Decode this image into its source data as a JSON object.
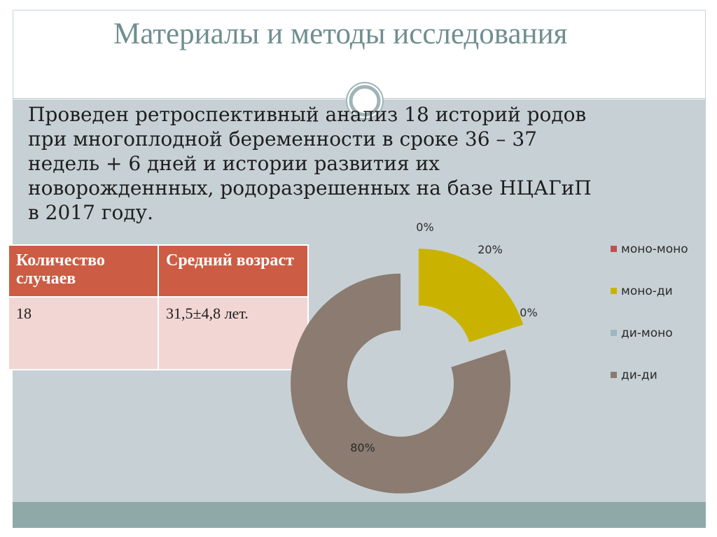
{
  "slide": {
    "title": "Материалы и методы исследования",
    "body_lines": [
      "Проведен ретроспективный анализ 18 историй родов",
      "при многоплодной беременности в сроке 36 – 37",
      "недель + 6 дней и истории развития их",
      "новорожденнных, родоразрешенных на базе НЦАГиП",
      "в 2017 году."
    ]
  },
  "table": {
    "headers": [
      "Количество случаев",
      "Средний возраст"
    ],
    "rows": [
      [
        "18",
        "31,5±4,8 лет."
      ]
    ]
  },
  "colors": {
    "accent_title": "#6f8e90",
    "table_header": "#cd5c45",
    "table_cell": "#f1d6d3",
    "background": "#c7d1d5",
    "band": "#8fa9a9"
  },
  "chart_data": {
    "type": "pie",
    "variant": "doughnut",
    "categories": [
      "моно-моно",
      "моно-ди",
      "ди-моно",
      "ди-ди"
    ],
    "values": [
      0,
      20,
      0,
      80
    ],
    "data_labels": [
      "0%",
      "20%",
      "0%",
      "80%"
    ],
    "colors": [
      "#c0504d",
      "#c9b300",
      "#9bb7c0",
      "#8b7b70"
    ],
    "legend_position": "right",
    "exploded": true
  }
}
